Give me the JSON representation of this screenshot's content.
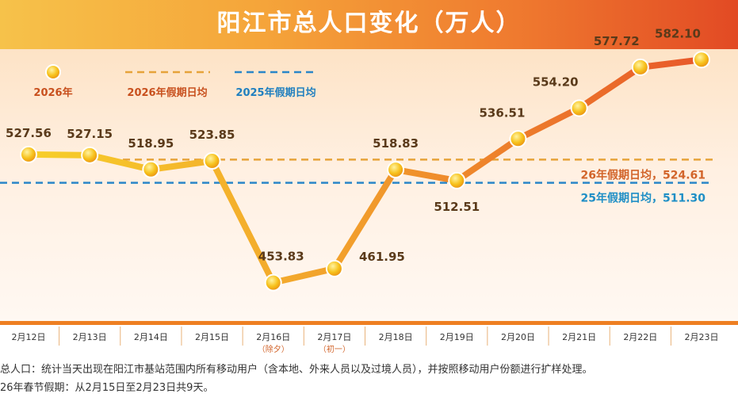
{
  "title": "阳江市总人口变化（万人）",
  "legend": {
    "series_2026": "2026年",
    "avg_2026": "2026年假期日均",
    "avg_2025": "2025年假期日均"
  },
  "colors": {
    "line_start": "#f7cf2a",
    "line_end": "#e8582a",
    "avg_2026": "#e6a33a",
    "avg_2025": "#2a86c8",
    "avg_2026_label": "#d2642a",
    "avg_2025_label": "#1f8fc6",
    "value_label": "#5a3a1a",
    "axis": "#ee7f22"
  },
  "chart_data": {
    "type": "line",
    "title": "阳江市总人口变化（万人）",
    "categories": [
      "2月12日",
      "2月13日",
      "2月14日",
      "2月15日",
      "2月16日",
      "2月17日",
      "2月18日",
      "2月19日",
      "2月20日",
      "2月21日",
      "2月22日",
      "2月23日"
    ],
    "category_notes": [
      "",
      "",
      "",
      "",
      "（除夕）",
      "（初一）",
      "",
      "",
      "",
      "",
      "",
      ""
    ],
    "series": [
      {
        "name": "2026年",
        "values": [
          527.56,
          527.15,
          518.95,
          523.85,
          453.83,
          461.95,
          518.83,
          512.51,
          536.51,
          554.2,
          577.72,
          582.1
        ]
      }
    ],
    "value_labels": [
      "527.56",
      "527.15",
      "518.95",
      "523.85",
      "453.83",
      "461.95",
      "518.83",
      "512.51",
      "536.51",
      "554.20",
      "577.72",
      "582.10"
    ],
    "reference_lines": [
      {
        "name": "2026年假期日均",
        "value": 524.61,
        "label": "26年假期日均，524.61"
      },
      {
        "name": "2025年假期日均",
        "value": 511.3,
        "label": "25年假期日均，511.30"
      }
    ],
    "ylim": [
      440,
      600
    ],
    "xlabel": "",
    "ylabel": "万人"
  },
  "notes": [
    "总人口：统计当天出现在阳江市基站范围内所有移动用户（含本地、外来人员以及过境人员），并按照移动用户份额进行扩样处理。",
    "26年春节假期：从2月15日至2月23日共9天。"
  ]
}
